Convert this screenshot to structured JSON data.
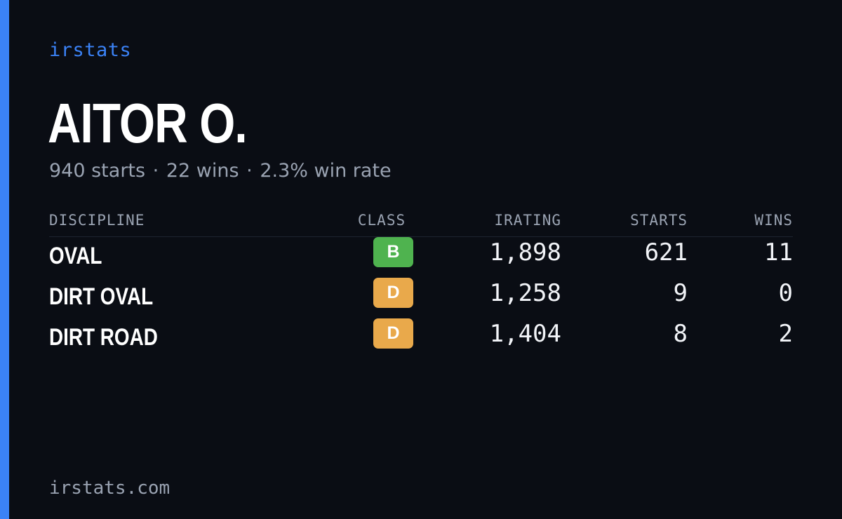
{
  "brand": "irstats",
  "driver": {
    "name": "AITOR O.",
    "summary": {
      "starts": "940 starts",
      "wins": "22 wins",
      "win_rate": "2.3% win rate",
      "separator": "·"
    }
  },
  "table": {
    "headers": {
      "discipline": "DISCIPLINE",
      "class": "CLASS",
      "irating": "IRATING",
      "starts": "STARTS",
      "wins": "WINS"
    },
    "rows": [
      {
        "discipline": "OVAL",
        "class": "B",
        "class_color": "#4fb34f",
        "irating": "1,898",
        "starts": "621",
        "wins": "11"
      },
      {
        "discipline": "DIRT OVAL",
        "class": "D",
        "class_color": "#e9a94b",
        "irating": "1,258",
        "starts": "9",
        "wins": "0"
      },
      {
        "discipline": "DIRT ROAD",
        "class": "D",
        "class_color": "#e9a94b",
        "irating": "1,404",
        "starts": "8",
        "wins": "2"
      }
    ]
  },
  "footer": "irstats.com",
  "colors": {
    "background": "#0a0d14",
    "accent": "#3b82f6",
    "muted_text": "#9aa3b2"
  }
}
